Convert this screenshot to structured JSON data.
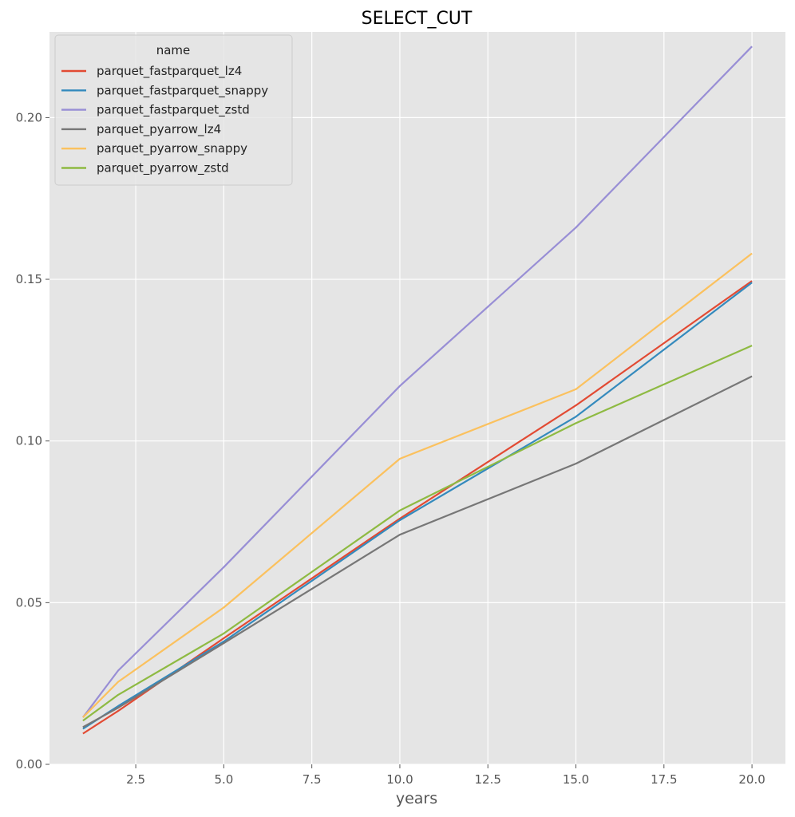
{
  "chart_data": {
    "type": "line",
    "title": "SELECT_CUT",
    "xlabel": "years",
    "ylabel": "",
    "xlim": [
      0.05,
      20.95
    ],
    "ylim": [
      0.0,
      0.2265
    ],
    "x_ticks": [
      2.5,
      5.0,
      7.5,
      10.0,
      12.5,
      15.0,
      17.5,
      20.0
    ],
    "x_tick_labels": [
      "2.5",
      "5.0",
      "7.5",
      "10.0",
      "12.5",
      "15.0",
      "17.5",
      "20.0"
    ],
    "y_ticks": [
      0.0,
      0.05,
      0.1,
      0.15,
      0.2
    ],
    "y_tick_labels": [
      "0.00",
      "0.05",
      "0.10",
      "0.15",
      "0.20"
    ],
    "grid": true,
    "legend": {
      "title": "name",
      "placement": "top-left"
    },
    "x": [
      1,
      2,
      5,
      10,
      15,
      20
    ],
    "series": [
      {
        "name": "parquet_fastparquet_lz4",
        "color": "#E24A33",
        "values": [
          0.0095,
          0.0165,
          0.039,
          0.076,
          0.111,
          0.1495
        ]
      },
      {
        "name": "parquet_fastparquet_snappy",
        "color": "#348ABD",
        "values": [
          0.011,
          0.018,
          0.038,
          0.0755,
          0.1075,
          0.149
        ]
      },
      {
        "name": "parquet_fastparquet_zstd",
        "color": "#988ED5",
        "values": [
          0.0145,
          0.029,
          0.061,
          0.117,
          0.166,
          0.222
        ]
      },
      {
        "name": "parquet_pyarrow_lz4",
        "color": "#777777",
        "values": [
          0.0115,
          0.0175,
          0.0375,
          0.071,
          0.093,
          0.12
        ]
      },
      {
        "name": "parquet_pyarrow_snappy",
        "color": "#FBC15E",
        "values": [
          0.0145,
          0.0255,
          0.0485,
          0.0945,
          0.116,
          0.158
        ]
      },
      {
        "name": "parquet_pyarrow_zstd",
        "color": "#8EBA42",
        "values": [
          0.0135,
          0.0215,
          0.0405,
          0.0785,
          0.1055,
          0.1295
        ]
      }
    ]
  }
}
